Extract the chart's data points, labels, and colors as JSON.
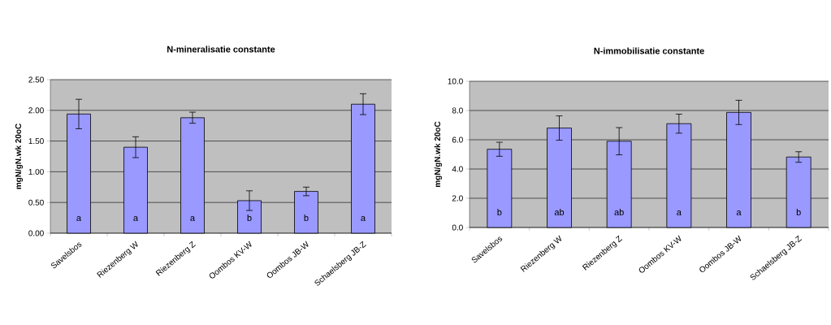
{
  "chart_data": [
    {
      "type": "bar",
      "title": "N-mineralisatie constante",
      "ylabel": "mgN/gN.wk 20oC",
      "categories": [
        "Savelsbos",
        "Riezenberg W",
        "Riezenberg Z",
        "Oombos KV-W",
        "Oombos JB-W",
        "Schaelsberg JB-Z"
      ],
      "values": [
        1.94,
        1.4,
        1.88,
        0.53,
        0.68,
        2.1
      ],
      "errors": [
        0.24,
        0.17,
        0.09,
        0.16,
        0.07,
        0.17
      ],
      "color": "#9999ff",
      "ylim": [
        0,
        2.5
      ],
      "yticks": [
        {
          "value": 0,
          "label": "0.00"
        },
        {
          "value": 0.5,
          "label": "0.50"
        },
        {
          "value": 1,
          "label": "1.00"
        },
        {
          "value": 1.5,
          "label": "1.50"
        },
        {
          "value": 2,
          "label": "2.00"
        },
        {
          "value": 2.5,
          "label": "2.50"
        }
      ],
      "grid": "y",
      "annotations": [
        "a",
        "a",
        "a",
        "b",
        "b",
        "a"
      ]
    },
    {
      "type": "bar",
      "title": "N-immobilisatie constante",
      "ylabel": "mgN/gN.wk 20oC",
      "categories": [
        "Savelsbos",
        "Riezenberg W",
        "Riezenberg Z",
        "Oombos KV-W",
        "Oombos JB-W",
        "Schaelsberg JB-Z"
      ],
      "values": [
        5.35,
        6.8,
        5.9,
        7.1,
        7.87,
        4.82
      ],
      "errors": [
        0.48,
        0.83,
        0.93,
        0.65,
        0.83,
        0.36
      ],
      "color": "#9999ff",
      "ylim": [
        0,
        10
      ],
      "yticks": [
        {
          "value": 0,
          "label": "0.0"
        },
        {
          "value": 2,
          "label": "2.0"
        },
        {
          "value": 4,
          "label": "4.0"
        },
        {
          "value": 6,
          "label": "6.0"
        },
        {
          "value": 8,
          "label": "8.0"
        },
        {
          "value": 10,
          "label": "10.0"
        }
      ],
      "grid": "y",
      "annotations": [
        "b",
        "ab",
        "ab",
        "a",
        "a",
        "b"
      ]
    }
  ]
}
